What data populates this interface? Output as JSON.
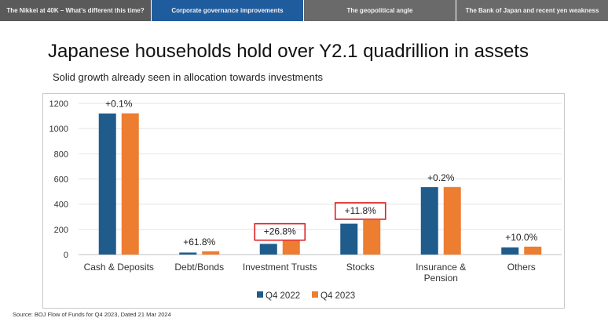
{
  "tabs": [
    {
      "label": "The Nikkei at 40K – What’s different this time?"
    },
    {
      "label": "Corporate governance improvements"
    },
    {
      "label": "The geopolitical angle"
    },
    {
      "label": "The Bank of Japan and recent yen weakness"
    }
  ],
  "active_tab_color": "#1f5c9e",
  "title": "Japanese households hold over Y2.1 quadrillion in assets",
  "subtitle": "Solid growth already seen in allocation towards investments",
  "source": "Source: BOJ Flow of Funds for Q4 2023, Dated 21 Mar 2024",
  "chart_data": {
    "type": "bar",
    "categories": [
      "Cash & Deposits",
      "Debt/Bonds",
      "Investment Trusts",
      "Stocks",
      "Insurance & Pension",
      "Others"
    ],
    "category_lines": [
      [
        "Cash & Deposits"
      ],
      [
        "Debt/Bonds"
      ],
      [
        "Investment Trusts"
      ],
      [
        "Stocks"
      ],
      [
        "Insurance &",
        "Pension"
      ],
      [
        "Others"
      ]
    ],
    "series": [
      {
        "name": "Q4 2022",
        "color": "#1f5c8b",
        "values": [
          1120,
          16,
          85,
          245,
          535,
          57
        ]
      },
      {
        "name": "Q4 2023",
        "color": "#ed7d31",
        "values": [
          1121,
          26,
          108,
          274,
          536,
          63
        ]
      }
    ],
    "annotations": [
      "+0.1%",
      "+61.8%",
      "+26.8%",
      "+11.8%",
      "+0.2%",
      "+10.0%"
    ],
    "highlighted": [
      false,
      false,
      true,
      true,
      false,
      false
    ],
    "highlight_color": "#e02020",
    "y_ticks": [
      "0",
      "200",
      "400",
      "600",
      "800",
      "1000",
      "1200"
    ],
    "ylim": [
      0,
      1200
    ],
    "grid": true,
    "legend": "bottom-center"
  }
}
